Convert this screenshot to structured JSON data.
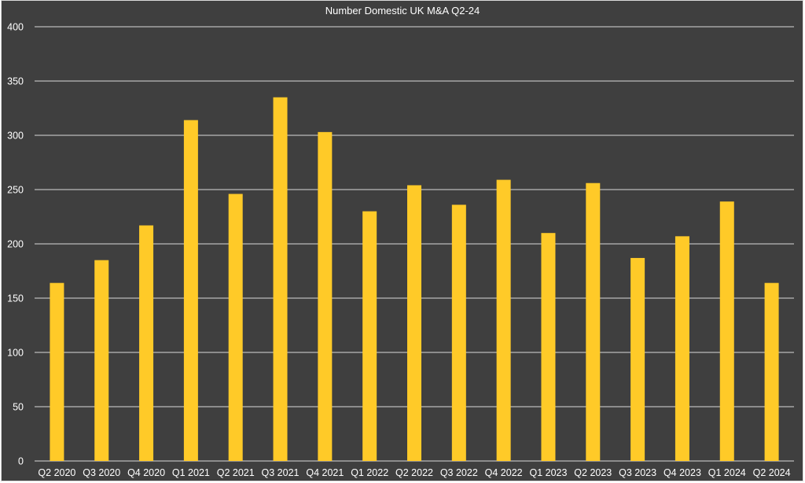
{
  "chart_data": {
    "type": "bar",
    "title": "Number Domestic UK M&A Q2-24",
    "xlabel": "",
    "ylabel": "",
    "categories": [
      "Q2 2020",
      "Q3 2020",
      "Q4 2020",
      "Q1 2021",
      "Q2 2021",
      "Q3 2021",
      "Q4 2021",
      "Q1 2022",
      "Q2 2022",
      "Q3 2022",
      "Q4 2022",
      "Q1 2023",
      "Q2 2023",
      "Q3 2023",
      "Q4 2023",
      "Q1 2024",
      "Q2 2024"
    ],
    "values": [
      164,
      185,
      217,
      314,
      246,
      335,
      303,
      230,
      254,
      236,
      259,
      210,
      256,
      187,
      207,
      239,
      164
    ],
    "ylim": [
      0,
      400
    ],
    "yticks": [
      0,
      50,
      100,
      150,
      200,
      250,
      300,
      350,
      400
    ],
    "grid": true,
    "legend": "none",
    "colors": {
      "background": "#3f3f3f",
      "bar": "#ffca28",
      "grid": "#d9d9d9",
      "text": "#ffffff"
    }
  }
}
